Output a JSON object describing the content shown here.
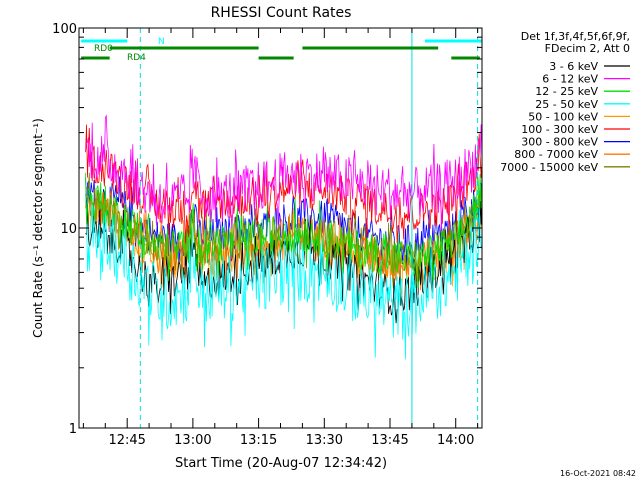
{
  "footer_timestamp": "16-Oct-2021 08:42",
  "chart_data": {
    "type": "line",
    "title": "RHESSI Count Rates",
    "xlabel": "Start Time (20-Aug-07 12:34:42)",
    "ylabel": "Count Rate (s⁻¹ detector segment⁻¹)",
    "yscale": "log",
    "ylim": [
      1,
      100
    ],
    "xlim_minutes_after_1234": [
      0,
      92
    ],
    "x_ticks": [
      {
        "label": "12:45",
        "minute": 11
      },
      {
        "label": "13:00",
        "minute": 26
      },
      {
        "label": "13:15",
        "minute": 41
      },
      {
        "label": "13:30",
        "minute": 56
      },
      {
        "label": "13:45",
        "minute": 71
      },
      {
        "label": "14:00",
        "minute": 86
      }
    ],
    "y_ticks": [
      {
        "label": "1",
        "value": 1
      },
      {
        "label": "10",
        "value": 10
      },
      {
        "label": "100",
        "value": 100
      }
    ],
    "legend": {
      "placement": "right",
      "header": [
        "Det 1f,3f,4f,5f,6f,9f,",
        "FDecim 2, Att 0"
      ]
    },
    "series": [
      {
        "name": "3 - 6 keV",
        "color": "#000000",
        "values": [
          [
            1.5,
            9.5
          ],
          [
            6,
            9
          ],
          [
            11,
            8
          ],
          [
            14,
            6
          ],
          [
            18,
            5
          ],
          [
            22,
            5.5
          ],
          [
            25,
            6
          ],
          [
            26,
            8.5
          ],
          [
            27,
            6
          ],
          [
            28,
            5
          ],
          [
            31,
            5.5
          ],
          [
            36,
            6
          ],
          [
            41,
            6.5
          ],
          [
            47,
            7.5
          ],
          [
            52,
            8
          ],
          [
            57,
            7
          ],
          [
            62,
            6
          ],
          [
            67,
            5.2
          ],
          [
            72,
            4.5
          ],
          [
            77,
            5
          ],
          [
            81,
            6
          ],
          [
            86,
            7.5
          ],
          [
            90,
            9.5
          ],
          [
            92,
            12
          ]
        ]
      },
      {
        "name": "6 - 12 keV",
        "color": "#ff00ff",
        "values": [
          [
            1.5,
            24
          ],
          [
            6,
            22
          ],
          [
            11,
            19
          ],
          [
            14,
            16
          ],
          [
            18,
            14
          ],
          [
            22,
            13.5
          ],
          [
            25,
            14
          ],
          [
            26,
            20
          ],
          [
            27,
            17
          ],
          [
            28,
            15
          ],
          [
            31,
            14
          ],
          [
            36,
            15
          ],
          [
            41,
            16
          ],
          [
            47,
            18
          ],
          [
            52,
            18.5
          ],
          [
            57,
            18
          ],
          [
            62,
            17
          ],
          [
            67,
            16
          ],
          [
            72,
            15
          ],
          [
            77,
            15
          ],
          [
            81,
            15.5
          ],
          [
            86,
            17
          ],
          [
            90,
            21
          ],
          [
            92,
            26
          ]
        ]
      },
      {
        "name": "12 - 25 keV",
        "color": "#00e000",
        "values": [
          [
            1.5,
            14
          ],
          [
            6,
            13
          ],
          [
            11,
            11
          ],
          [
            14,
            9
          ],
          [
            18,
            8
          ],
          [
            22,
            8
          ],
          [
            25,
            8.5
          ],
          [
            26,
            11
          ],
          [
            27,
            9
          ],
          [
            28,
            8
          ],
          [
            31,
            8.5
          ],
          [
            36,
            8.5
          ],
          [
            41,
            9
          ],
          [
            47,
            9.5
          ],
          [
            52,
            9.5
          ],
          [
            57,
            9
          ],
          [
            62,
            8
          ],
          [
            67,
            7.5
          ],
          [
            72,
            7
          ],
          [
            77,
            7
          ],
          [
            81,
            7.5
          ],
          [
            86,
            8.5
          ],
          [
            90,
            12
          ],
          [
            92,
            16
          ]
        ]
      },
      {
        "name": "25 - 50 keV",
        "color": "#00ffff",
        "values": [
          [
            1.5,
            9
          ],
          [
            6,
            8.5
          ],
          [
            11,
            7
          ],
          [
            14,
            5.5
          ],
          [
            18,
            4.5
          ],
          [
            22,
            4.5
          ],
          [
            25,
            5
          ],
          [
            26,
            8
          ],
          [
            27,
            5.5
          ],
          [
            28,
            4.5
          ],
          [
            31,
            5
          ],
          [
            36,
            5
          ],
          [
            41,
            5.5
          ],
          [
            47,
            6
          ],
          [
            52,
            6.3
          ],
          [
            57,
            6
          ],
          [
            62,
            5
          ],
          [
            67,
            4.5
          ],
          [
            72,
            4
          ],
          [
            77,
            4.2
          ],
          [
            81,
            5
          ],
          [
            86,
            6
          ],
          [
            90,
            8.5
          ],
          [
            92,
            11
          ]
        ]
      },
      {
        "name": "50 - 100 keV",
        "color": "#ff9900",
        "values": [
          [
            1.5,
            12
          ],
          [
            6,
            11.5
          ],
          [
            11,
            10
          ],
          [
            14,
            8
          ],
          [
            18,
            7
          ],
          [
            22,
            6.8
          ],
          [
            25,
            7
          ],
          [
            26,
            10
          ],
          [
            27,
            8
          ],
          [
            28,
            7
          ],
          [
            31,
            7.2
          ],
          [
            36,
            7.5
          ],
          [
            41,
            7.8
          ],
          [
            47,
            8.5
          ],
          [
            52,
            8.8
          ],
          [
            57,
            8.3
          ],
          [
            62,
            7.5
          ],
          [
            67,
            6.8
          ],
          [
            72,
            6.3
          ],
          [
            77,
            6.3
          ],
          [
            81,
            6.8
          ],
          [
            86,
            7.8
          ],
          [
            90,
            10
          ],
          [
            92,
            13
          ]
        ]
      },
      {
        "name": "100 - 300 keV",
        "color": "#ff0000",
        "values": [
          [
            1.5,
            22
          ],
          [
            6,
            20
          ],
          [
            11,
            17
          ],
          [
            14,
            15
          ],
          [
            18,
            13
          ],
          [
            22,
            12.5
          ],
          [
            25,
            12.5
          ],
          [
            26,
            17
          ],
          [
            27,
            15
          ],
          [
            28,
            13
          ],
          [
            31,
            13
          ],
          [
            36,
            14
          ],
          [
            41,
            14.5
          ],
          [
            47,
            15.5
          ],
          [
            52,
            16
          ],
          [
            57,
            15.5
          ],
          [
            62,
            14
          ],
          [
            67,
            13
          ],
          [
            72,
            12
          ],
          [
            77,
            12
          ],
          [
            81,
            12.5
          ],
          [
            86,
            14
          ],
          [
            90,
            18
          ],
          [
            92,
            23
          ]
        ]
      },
      {
        "name": "300 - 800 keV",
        "color": "#0000ff",
        "values": [
          [
            1.5,
            15
          ],
          [
            6,
            14
          ],
          [
            11,
            12.5
          ],
          [
            14,
            10
          ],
          [
            18,
            9
          ],
          [
            22,
            8.8
          ],
          [
            25,
            9
          ],
          [
            26,
            12
          ],
          [
            27,
            10
          ],
          [
            28,
            9
          ],
          [
            31,
            9.2
          ],
          [
            36,
            9.6
          ],
          [
            41,
            10
          ],
          [
            47,
            11
          ],
          [
            52,
            11.5
          ],
          [
            57,
            11
          ],
          [
            62,
            9.8
          ],
          [
            67,
            9
          ],
          [
            72,
            8.5
          ],
          [
            77,
            8.5
          ],
          [
            81,
            9
          ],
          [
            86,
            10
          ],
          [
            90,
            13
          ],
          [
            92,
            16
          ]
        ]
      },
      {
        "name": "800 - 7000 keV",
        "color": "#ff7700",
        "values": [
          [
            1.5,
            12.5
          ],
          [
            6,
            12
          ],
          [
            11,
            10.5
          ],
          [
            14,
            8.5
          ],
          [
            18,
            7.5
          ],
          [
            22,
            7.2
          ],
          [
            25,
            7.5
          ],
          [
            26,
            10.5
          ],
          [
            27,
            8.5
          ],
          [
            28,
            7.5
          ],
          [
            31,
            7.8
          ],
          [
            36,
            8
          ],
          [
            41,
            8.2
          ],
          [
            47,
            9
          ],
          [
            52,
            9.2
          ],
          [
            57,
            8.8
          ],
          [
            62,
            8
          ],
          [
            67,
            7.2
          ],
          [
            72,
            6.7
          ],
          [
            77,
            6.7
          ],
          [
            81,
            7.2
          ],
          [
            86,
            8.2
          ],
          [
            90,
            10.5
          ],
          [
            92,
            13.5
          ]
        ]
      },
      {
        "name": "7000 - 15000 keV",
        "color": "#808000",
        "values": [
          [
            1.5,
            13
          ],
          [
            6,
            12.5
          ],
          [
            11,
            11
          ],
          [
            14,
            9
          ],
          [
            18,
            8
          ],
          [
            22,
            7.6
          ],
          [
            25,
            8
          ],
          [
            26,
            11
          ],
          [
            27,
            9
          ],
          [
            28,
            8
          ],
          [
            31,
            8.2
          ],
          [
            36,
            8.4
          ],
          [
            41,
            8.6
          ],
          [
            47,
            9.3
          ],
          [
            52,
            9.5
          ],
          [
            57,
            9
          ],
          [
            62,
            8.3
          ],
          [
            67,
            7.6
          ],
          [
            72,
            7
          ],
          [
            77,
            7
          ],
          [
            81,
            7.5
          ],
          [
            86,
            8.5
          ],
          [
            90,
            11
          ],
          [
            92,
            14
          ]
        ]
      }
    ],
    "annotations": [
      {
        "text": "N",
        "color": "#00ffff"
      },
      {
        "text": "RD0",
        "color": "#008800"
      },
      {
        "text": "RD4",
        "color": "#008800"
      }
    ],
    "flag_bars": [
      {
        "name": "N",
        "color": "#00ffff",
        "segments": [
          [
            0.5,
            11
          ],
          [
            79,
            92
          ]
        ]
      },
      {
        "name": "RD0",
        "color": "#008800",
        "segments": [
          [
            7,
            41
          ],
          [
            51,
            82
          ]
        ]
      },
      {
        "name": "RD4",
        "color": "#008800",
        "segments": [
          [
            0.5,
            7
          ],
          [
            41,
            49
          ],
          [
            85,
            91.5
          ]
        ]
      }
    ],
    "vertical_markers": [
      {
        "minute": 0,
        "style": "solid",
        "color": "#00e0e0"
      },
      {
        "minute": 14,
        "style": "dashed",
        "color": "#00e0e0"
      },
      {
        "minute": 76,
        "style": "solid",
        "color": "#00e0e0"
      },
      {
        "minute": 91,
        "style": "dashed",
        "color": "#00e0e0"
      }
    ]
  }
}
